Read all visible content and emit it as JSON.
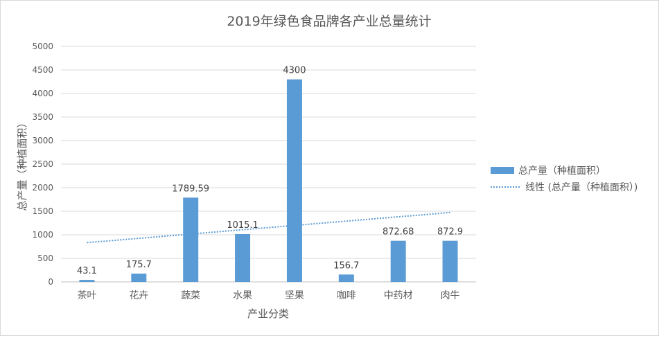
{
  "chart_data": {
    "type": "bar",
    "title": "2019年绿色食品牌各产业总量统计",
    "xlabel": "产业分类",
    "ylabel": "总产量（种植面积）",
    "categories": [
      "茶叶",
      "花卉",
      "蔬菜",
      "水果",
      "坚果",
      "咖啡",
      "中药材",
      "肉牛"
    ],
    "series": [
      {
        "name": "总产量（种植面积）",
        "values": [
          43.1,
          175.7,
          1789.59,
          1015.1,
          4300,
          156.7,
          872.68,
          872.9
        ],
        "labels": [
          "43.1",
          "175.7",
          "1789.59",
          "1015.1",
          "4300",
          "156.7",
          "872.68",
          "872.9"
        ],
        "color": "#5b9bd5"
      }
    ],
    "trendline": {
      "name": "线性 (总产量（种植面积）)",
      "type": "linear",
      "style": "dotted",
      "color": "#5b9bd5"
    },
    "ylim": [
      0,
      5000
    ],
    "yticks": [
      0,
      500,
      1000,
      1500,
      2000,
      2500,
      3000,
      3500,
      4000,
      4500,
      5000
    ],
    "grid": true,
    "legend_position": "right"
  }
}
